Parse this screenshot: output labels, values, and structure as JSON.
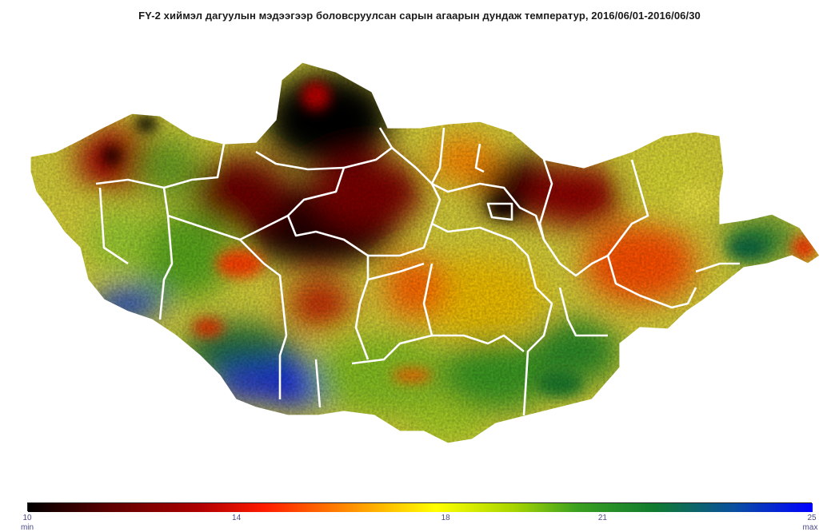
{
  "title": "FY-2 хиймэл дагуулын мэдээгээр боловсруулсан  сарын агаарын дундаж температур, 2016/06/01-2016/06/30",
  "legend": {
    "ticks": [
      "10",
      "14",
      "18",
      "21",
      "25"
    ],
    "tick_values": [
      10,
      14,
      18,
      21,
      25
    ],
    "min_value": 10,
    "max_value": 25,
    "min_label": "min",
    "max_label": "max",
    "colors": [
      "#000000",
      "#8b0000",
      "#ff0000",
      "#ff7f00",
      "#ffff00",
      "#9acd32",
      "#1e8a1e",
      "#006400",
      "#0000ff"
    ]
  },
  "map": {
    "country_fill": "#c8c43a",
    "boundary_color": "#ffffff"
  }
}
